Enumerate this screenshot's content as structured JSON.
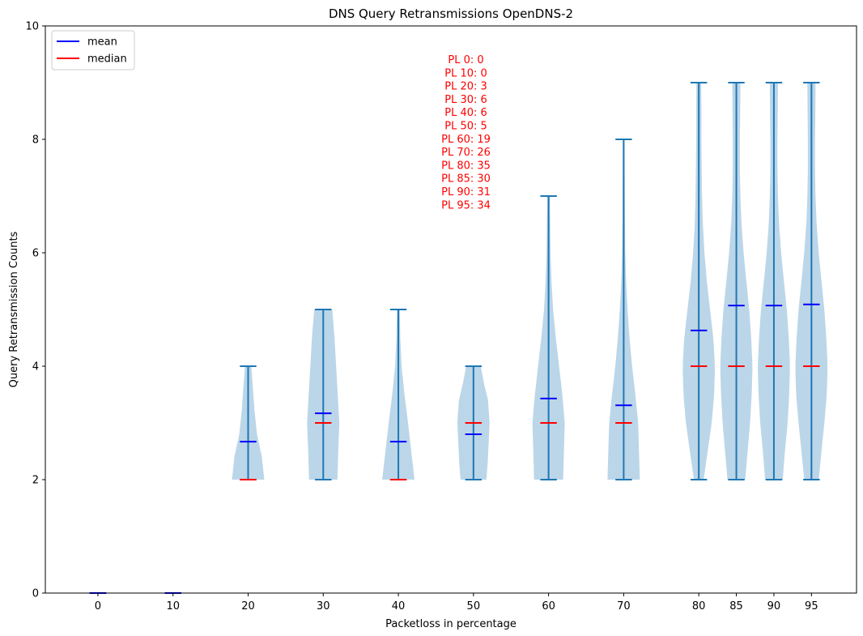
{
  "chart_data": {
    "type": "violin",
    "title": "DNS Query Retransmissions OpenDNS-2",
    "xlabel": "Packetloss in percentage",
    "ylabel": "Query Retransmission Counts",
    "ylim": [
      0,
      10
    ],
    "yticks": [
      0,
      2,
      4,
      6,
      8,
      10
    ],
    "grid": false,
    "categories": [
      "0",
      "10",
      "20",
      "30",
      "40",
      "50",
      "60",
      "70",
      "80",
      "85",
      "90",
      "95"
    ],
    "x_positions": [
      0,
      10,
      20,
      30,
      40,
      50,
      60,
      70,
      80,
      85,
      90,
      95
    ],
    "xlim": [
      -7,
      101
    ],
    "series": [
      {
        "x": 0,
        "min": 0,
        "max": 0,
        "mean": 0,
        "median": 0,
        "density": [
          [
            0,
            0
          ]
        ]
      },
      {
        "x": 10,
        "min": 0,
        "max": 0,
        "mean": 0,
        "median": 0,
        "density": [
          [
            0,
            0
          ]
        ]
      },
      {
        "x": 20,
        "min": 2,
        "max": 4,
        "mean": 2.67,
        "median": 2,
        "density": [
          [
            2,
            1.0
          ],
          [
            2.4,
            0.85
          ],
          [
            2.8,
            0.55
          ],
          [
            3.2,
            0.4
          ],
          [
            3.6,
            0.3
          ],
          [
            4,
            0.2
          ]
        ]
      },
      {
        "x": 30,
        "min": 2,
        "max": 5,
        "mean": 3.17,
        "median": 3,
        "density": [
          [
            2,
            0.88
          ],
          [
            2.5,
            0.93
          ],
          [
            3,
            1.0
          ],
          [
            3.5,
            0.9
          ],
          [
            4,
            0.8
          ],
          [
            4.5,
            0.7
          ],
          [
            5,
            0.56
          ]
        ]
      },
      {
        "x": 40,
        "min": 2,
        "max": 5,
        "mean": 2.67,
        "median": 2,
        "density": [
          [
            2,
            1.0
          ],
          [
            2.5,
            0.8
          ],
          [
            3,
            0.6
          ],
          [
            3.5,
            0.38
          ],
          [
            4,
            0.2
          ],
          [
            4.5,
            0.12
          ],
          [
            5,
            0.09
          ]
        ]
      },
      {
        "x": 50,
        "min": 2,
        "max": 4,
        "mean": 2.8,
        "median": 3,
        "density": [
          [
            2,
            0.8
          ],
          [
            2.3,
            0.88
          ],
          [
            2.7,
            0.95
          ],
          [
            3,
            1.0
          ],
          [
            3.4,
            0.9
          ],
          [
            3.7,
            0.65
          ],
          [
            4,
            0.45
          ]
        ]
      },
      {
        "x": 60,
        "min": 2,
        "max": 7,
        "mean": 3.43,
        "median": 3,
        "density": [
          [
            2,
            0.9
          ],
          [
            2.5,
            0.95
          ],
          [
            3,
            1.0
          ],
          [
            3.5,
            0.85
          ],
          [
            4,
            0.65
          ],
          [
            4.5,
            0.45
          ],
          [
            5,
            0.28
          ],
          [
            5.5,
            0.18
          ],
          [
            6,
            0.12
          ],
          [
            6.5,
            0.1
          ],
          [
            7,
            0.08
          ]
        ]
      },
      {
        "x": 70,
        "min": 2,
        "max": 8,
        "mean": 3.31,
        "median": 3,
        "density": [
          [
            2,
            1.0
          ],
          [
            2.5,
            0.95
          ],
          [
            3,
            0.9
          ],
          [
            3.5,
            0.72
          ],
          [
            4,
            0.52
          ],
          [
            4.5,
            0.36
          ],
          [
            5,
            0.24
          ],
          [
            5.5,
            0.15
          ],
          [
            6,
            0.1
          ],
          [
            6.5,
            0.08
          ],
          [
            7,
            0.07
          ],
          [
            7.5,
            0.06
          ],
          [
            8,
            0.05
          ]
        ]
      },
      {
        "x": 80,
        "min": 2,
        "max": 9,
        "mean": 4.63,
        "median": 4,
        "density": [
          [
            2,
            0.3
          ],
          [
            2.5,
            0.55
          ],
          [
            3,
            0.8
          ],
          [
            3.5,
            0.95
          ],
          [
            4,
            1.0
          ],
          [
            4.5,
            0.9
          ],
          [
            5,
            0.7
          ],
          [
            5.5,
            0.5
          ],
          [
            6,
            0.35
          ],
          [
            6.5,
            0.25
          ],
          [
            7,
            0.2
          ],
          [
            7.5,
            0.18
          ],
          [
            8,
            0.16
          ],
          [
            8.5,
            0.16
          ],
          [
            9,
            0.15
          ]
        ]
      },
      {
        "x": 85,
        "min": 2,
        "max": 9,
        "mean": 5.07,
        "median": 4,
        "density": [
          [
            2,
            0.55
          ],
          [
            2.5,
            0.7
          ],
          [
            3,
            0.85
          ],
          [
            3.5,
            0.95
          ],
          [
            4,
            1.0
          ],
          [
            4.5,
            0.92
          ],
          [
            5,
            0.8
          ],
          [
            5.5,
            0.62
          ],
          [
            6,
            0.45
          ],
          [
            6.5,
            0.32
          ],
          [
            7,
            0.25
          ],
          [
            7.5,
            0.22
          ],
          [
            8,
            0.22
          ],
          [
            8.5,
            0.24
          ],
          [
            9,
            0.25
          ]
        ]
      },
      {
        "x": 90,
        "min": 2,
        "max": 9,
        "mean": 5.07,
        "median": 4,
        "density": [
          [
            2,
            0.55
          ],
          [
            2.5,
            0.68
          ],
          [
            3,
            0.85
          ],
          [
            3.5,
            0.95
          ],
          [
            4,
            1.0
          ],
          [
            4.5,
            0.92
          ],
          [
            5,
            0.8
          ],
          [
            5.5,
            0.62
          ],
          [
            6,
            0.45
          ],
          [
            6.5,
            0.32
          ],
          [
            7,
            0.25
          ],
          [
            7.5,
            0.22
          ],
          [
            8,
            0.22
          ],
          [
            8.5,
            0.24
          ],
          [
            9,
            0.25
          ]
        ]
      },
      {
        "x": 95,
        "min": 2,
        "max": 9,
        "mean": 5.09,
        "median": 4,
        "density": [
          [
            2,
            0.45
          ],
          [
            2.5,
            0.62
          ],
          [
            3,
            0.8
          ],
          [
            3.5,
            0.95
          ],
          [
            4,
            1.0
          ],
          [
            4.5,
            0.92
          ],
          [
            5,
            0.8
          ],
          [
            5.5,
            0.62
          ],
          [
            6,
            0.45
          ],
          [
            6.5,
            0.32
          ],
          [
            7,
            0.25
          ],
          [
            7.5,
            0.22
          ],
          [
            8,
            0.22
          ],
          [
            8.5,
            0.24
          ],
          [
            9,
            0.25
          ]
        ]
      }
    ],
    "legend": {
      "placement": "top-left",
      "entries": [
        {
          "label": "mean",
          "color": "#0000ff"
        },
        {
          "label": "median",
          "color": "#ff0000"
        }
      ]
    },
    "annotation": {
      "color": "#ff0000",
      "lines": [
        "PL 0: 0",
        "PL 10: 0",
        "PL 20: 3",
        "PL 30: 6",
        "PL 40: 6",
        "PL 50: 5",
        "PL 60: 19",
        "PL 70: 26",
        "PL 80: 35",
        "PL 85: 30",
        "PL 90: 31",
        "PL 95: 34"
      ]
    },
    "colors": {
      "violin_fill": "#1f77b4",
      "violin_line": "#1f77b4",
      "mean": "#0000ff",
      "median": "#ff0000"
    }
  }
}
